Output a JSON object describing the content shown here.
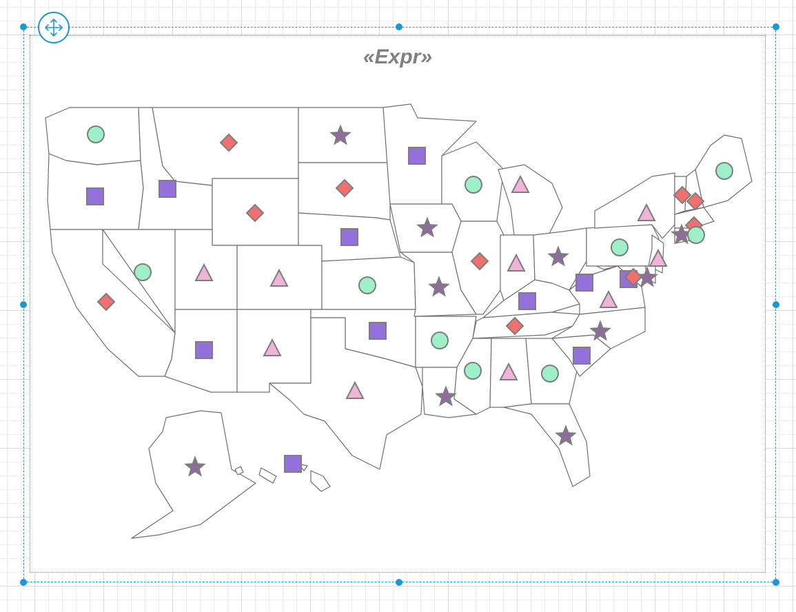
{
  "report_map": {
    "title": "«Expr»"
  },
  "colors": {
    "selection": "#1a98d5",
    "circle": "#9ef0c9",
    "square": "#9370db",
    "diamond": "#f07070",
    "triangle": "#f0b4d8",
    "star": "#8e6c9e"
  },
  "icons": {
    "move_handle": "move-arrows-icon"
  },
  "markers": [
    {
      "state": "washington",
      "shape": "circle"
    },
    {
      "state": "oregon",
      "shape": "square"
    },
    {
      "state": "idaho",
      "shape": "square"
    },
    {
      "state": "montana",
      "shape": "diamond"
    },
    {
      "state": "wyoming",
      "shape": "diamond"
    },
    {
      "state": "north-dakota",
      "shape": "star"
    },
    {
      "state": "south-dakota",
      "shape": "diamond"
    },
    {
      "state": "minnesota",
      "shape": "square"
    },
    {
      "state": "wisconsin",
      "shape": "circle"
    },
    {
      "state": "michigan",
      "shape": "triangle"
    },
    {
      "state": "maine",
      "shape": "circle"
    },
    {
      "state": "vermont",
      "shape": "diamond"
    },
    {
      "state": "new-hampshire",
      "shape": "diamond"
    },
    {
      "state": "new-york",
      "shape": "triangle"
    },
    {
      "state": "massachusetts",
      "shape": "diamond"
    },
    {
      "state": "connecticut",
      "shape": "star"
    },
    {
      "state": "rhode-island",
      "shape": "circle"
    },
    {
      "state": "california",
      "shape": "diamond"
    },
    {
      "state": "nevada",
      "shape": "circle"
    },
    {
      "state": "utah",
      "shape": "triangle"
    },
    {
      "state": "colorado",
      "shape": "triangle"
    },
    {
      "state": "nebraska",
      "shape": "square"
    },
    {
      "state": "iowa",
      "shape": "star"
    },
    {
      "state": "kansas",
      "shape": "circle"
    },
    {
      "state": "missouri",
      "shape": "star"
    },
    {
      "state": "illinois",
      "shape": "diamond"
    },
    {
      "state": "indiana",
      "shape": "triangle"
    },
    {
      "state": "ohio",
      "shape": "star"
    },
    {
      "state": "pennsylvania",
      "shape": "circle"
    },
    {
      "state": "new-jersey",
      "shape": "triangle"
    },
    {
      "state": "maryland",
      "shape": "square"
    },
    {
      "state": "delaware",
      "shape": "star"
    },
    {
      "state": "dc",
      "shape": "diamond"
    },
    {
      "state": "west-virginia",
      "shape": "square"
    },
    {
      "state": "virginia",
      "shape": "triangle"
    },
    {
      "state": "kentucky",
      "shape": "square"
    },
    {
      "state": "tennessee",
      "shape": "diamond"
    },
    {
      "state": "north-carolina",
      "shape": "star"
    },
    {
      "state": "south-carolina",
      "shape": "square"
    },
    {
      "state": "georgia",
      "shape": "circle"
    },
    {
      "state": "alabama",
      "shape": "triangle"
    },
    {
      "state": "mississippi",
      "shape": "circle"
    },
    {
      "state": "arkansas",
      "shape": "circle"
    },
    {
      "state": "louisiana",
      "shape": "star"
    },
    {
      "state": "florida",
      "shape": "star"
    },
    {
      "state": "oklahoma",
      "shape": "square"
    },
    {
      "state": "texas",
      "shape": "triangle"
    },
    {
      "state": "new-mexico",
      "shape": "triangle"
    },
    {
      "state": "arizona",
      "shape": "square"
    },
    {
      "state": "alaska",
      "shape": "star"
    },
    {
      "state": "hawaii",
      "shape": "square"
    }
  ]
}
